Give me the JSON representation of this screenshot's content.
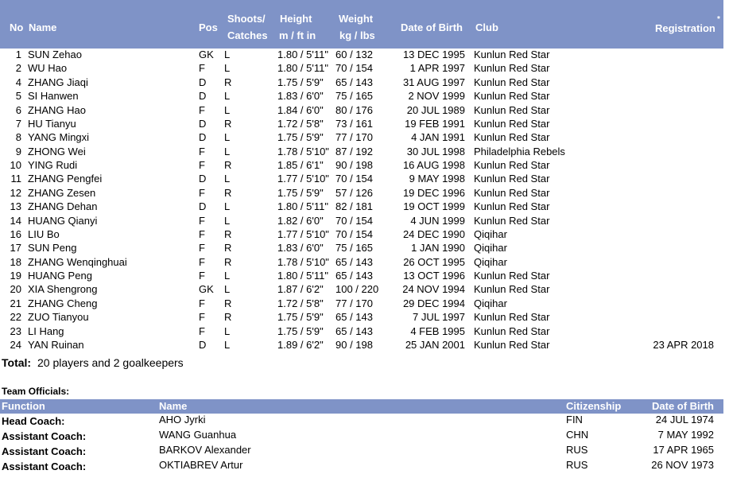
{
  "players": {
    "header": {
      "no": "No",
      "name": "Name",
      "pos": "Pos",
      "shoots": [
        "Shoots/",
        "Catches"
      ],
      "height": [
        "Height",
        "m / ft in"
      ],
      "weight": [
        "Weight",
        "kg / lbs"
      ],
      "dob": "Date of Birth",
      "club": "Club",
      "registration": "Registration",
      "note": "*"
    },
    "rows": [
      [
        1,
        "SUN Zehao",
        "GK",
        "L",
        "1.80 / 5'11\"",
        "60 / 132",
        "13 DEC 1995",
        "Kunlun Red Star"
      ],
      [
        2,
        "WU Hao",
        "F",
        "L",
        "1.80 / 5'11\"",
        "70 / 154",
        "1 APR 1997",
        "Kunlun Red Star"
      ],
      [
        4,
        "ZHANG Jiaqi",
        "D",
        "R",
        "1.75 / 5'9\"",
        "65 / 143",
        "31 AUG 1997",
        "Kunlun Red Star"
      ],
      [
        5,
        "SI Hanwen",
        "D",
        "L",
        "1.83 / 6'0\"",
        "75 / 165",
        "2 NOV 1999",
        "Kunlun Red Star"
      ],
      [
        6,
        "ZHANG Hao",
        "F",
        "L",
        "1.84 / 6'0\"",
        "80 / 176",
        "20 JUL 1989",
        "Kunlun Red Star"
      ],
      [
        7,
        "HU Tianyu",
        "D",
        "R",
        "1.72 / 5'8\"",
        "73 / 161",
        "19 FEB 1991",
        "Kunlun Red Star"
      ],
      [
        8,
        "YANG Mingxi",
        "D",
        "L",
        "1.75 / 5'9\"",
        "77 / 170",
        "4 JAN 1991",
        "Kunlun Red Star"
      ],
      [
        9,
        "ZHONG Wei",
        "F",
        "L",
        "1.78 / 5'10\"",
        "87 / 192",
        "30 JUL 1998",
        "Philadelphia Rebels"
      ],
      [
        10,
        "YING Rudi",
        "F",
        "R",
        "1.85 / 6'1\"",
        "90 / 198",
        "16 AUG 1998",
        "Kunlun Red Star"
      ],
      [
        11,
        "ZHANG Pengfei",
        "D",
        "L",
        "1.77 / 5'10\"",
        "70 / 154",
        "9 MAY 1998",
        "Kunlun Red Star"
      ],
      [
        12,
        "ZHANG Zesen",
        "F",
        "R",
        "1.75 / 5'9\"",
        "57 / 126",
        "19 DEC 1996",
        "Kunlun Red Star"
      ],
      [
        13,
        "ZHANG Dehan",
        "D",
        "L",
        "1.80 / 5'11\"",
        "82 / 181",
        "19 OCT 1999",
        "Kunlun Red Star"
      ],
      [
        14,
        "HUANG Qianyi",
        "F",
        "L",
        "1.82 / 6'0\"",
        "70 / 154",
        "4 JUN 1999",
        "Kunlun Red Star"
      ],
      [
        16,
        "LIU Bo",
        "F",
        "R",
        "1.77 / 5'10\"",
        "70 / 154",
        "24 DEC 1990",
        "Qiqihar"
      ],
      [
        17,
        "SUN Peng",
        "F",
        "R",
        "1.83 / 6'0\"",
        "75 / 165",
        "1 JAN 1990",
        "Qiqihar"
      ],
      [
        18,
        "ZHANG Wenqinghuai",
        "F",
        "R",
        "1.78 / 5'10\"",
        "65 / 143",
        "26 OCT 1995",
        "Qiqihar"
      ],
      [
        19,
        "HUANG Peng",
        "F",
        "L",
        "1.80 / 5'11\"",
        "65 / 143",
        "13 OCT 1996",
        "Kunlun Red Star"
      ],
      [
        20,
        "XIA Shengrong",
        "GK",
        "L",
        "1.87 / 6'2\"",
        "100 / 220",
        "24 NOV 1994",
        "Kunlun Red Star"
      ],
      [
        21,
        "ZHANG Cheng",
        "F",
        "R",
        "1.72 / 5'8\"",
        "77 / 170",
        "29 DEC 1994",
        "Qiqihar"
      ],
      [
        22,
        "ZUO Tianyou",
        "F",
        "R",
        "1.75 / 5'9\"",
        "65 / 143",
        "7 JUL 1997",
        "Kunlun Red Star"
      ],
      [
        23,
        "LI Hang",
        "F",
        "L",
        "1.75 / 5'9\"",
        "65 / 143",
        "4 FEB 1995",
        "Kunlun Red Star"
      ],
      [
        24,
        "YAN Ruinan",
        "D",
        "L",
        "1.89 / 6'2\"",
        "90 / 198",
        "25 JAN 2001",
        "Kunlun Red Star",
        "23 APR 2018"
      ]
    ],
    "total": {
      "label": "Total:",
      "text": "20 players and 2 goalkeepers"
    }
  },
  "officials": {
    "title": "Team Officials:",
    "header": [
      "Function",
      "Name",
      "Citizenship",
      "Date of Birth"
    ],
    "rows": [
      [
        "Head Coach:",
        "AHO Jyrki",
        "FIN",
        "24 JUL 1974"
      ],
      [
        "Assistant Coach:",
        "WANG Guanhua",
        "CHN",
        "7 MAY 1992"
      ],
      [
        "Assistant Coach:",
        "BARKOV Alexander",
        "RUS",
        "17 APR 1965"
      ],
      [
        "Assistant Coach:",
        "OKTIABREV Artur",
        "RUS",
        "26 NOV 1973"
      ]
    ]
  }
}
